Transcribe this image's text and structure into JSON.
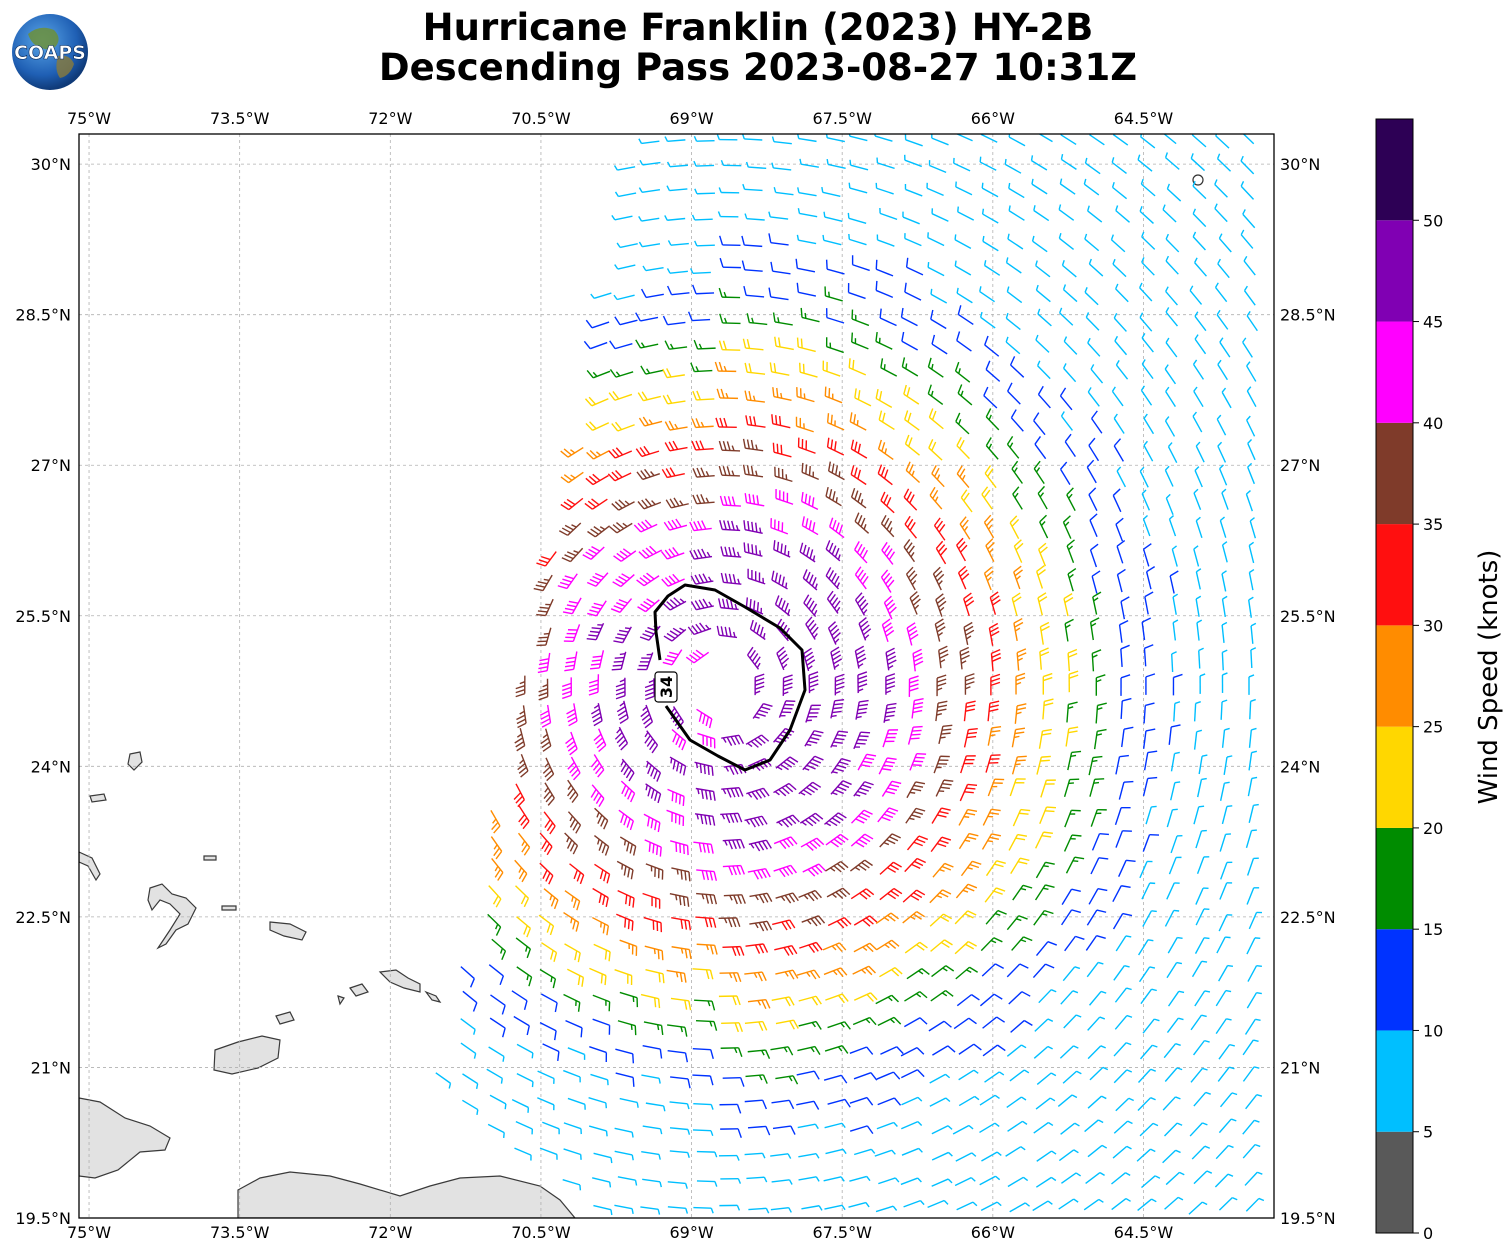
{
  "title": {
    "line1": "Hurricane Franklin (2023) HY-2B",
    "line2": "Descending Pass 2023-08-27 10:31Z"
  },
  "logo": {
    "text": "COAPS"
  },
  "map": {
    "lon_range": [
      -75.1,
      -63.2
    ],
    "lat_range": [
      19.5,
      30.3
    ],
    "lon_ticks": [
      "75°W",
      "73.5°W",
      "72°W",
      "70.5°W",
      "69°W",
      "67.5°W",
      "66°W",
      "64.5°W"
    ],
    "lat_ticks": [
      "19.5°N",
      "21°N",
      "22.5°N",
      "24°N",
      "25.5°N",
      "27°N",
      "28.5°N",
      "30°N"
    ],
    "grid": true,
    "storm_center": {
      "lon": -68.7,
      "lat": 24.8
    },
    "contour": {
      "label": "34",
      "units": "knots"
    },
    "wind_field": "cyclonic wind barbs colored by speed"
  },
  "colorbar": {
    "label": "Wind Speed (knots)",
    "ticks": [
      "0",
      "5",
      "10",
      "15",
      "20",
      "25",
      "30",
      "35",
      "40",
      "45",
      "50"
    ],
    "bins": [
      {
        "min": 0,
        "max": 5,
        "color": "#595959"
      },
      {
        "min": 5,
        "max": 10,
        "color": "#00bfff"
      },
      {
        "min": 10,
        "max": 15,
        "color": "#0033ff"
      },
      {
        "min": 15,
        "max": 20,
        "color": "#008c00"
      },
      {
        "min": 20,
        "max": 25,
        "color": "#ffd700"
      },
      {
        "min": 25,
        "max": 30,
        "color": "#ff8c00"
      },
      {
        "min": 30,
        "max": 35,
        "color": "#ff0f0f"
      },
      {
        "min": 35,
        "max": 40,
        "color": "#7f3b2a"
      },
      {
        "min": 40,
        "max": 45,
        "color": "#ff00ff"
      },
      {
        "min": 45,
        "max": 50,
        "color": "#8000b3"
      },
      {
        "min": 50,
        "max": 55,
        "color": "#2d0055"
      }
    ]
  }
}
